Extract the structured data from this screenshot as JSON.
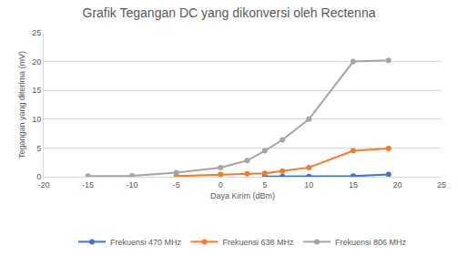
{
  "chart_data": {
    "type": "line",
    "title": "Grafik Tegangan DC yang dikonversi oleh Rectenna",
    "x_label": "Daya Kirim (dBm)",
    "y_label": "Tegangan yang diterima (mV)",
    "series": [
      {
        "name": "Frekuensi 470 MHz",
        "color": "#4472c4",
        "marker": "circle",
        "x": [
          5,
          7,
          10,
          15,
          19
        ],
        "values": [
          0.05,
          0.05,
          0.05,
          0.1,
          0.4
        ]
      },
      {
        "name": "Frekuensi 638 MHz",
        "color": "#ed7d31",
        "marker": "circle",
        "x": [
          -5,
          0,
          3,
          5,
          7,
          10,
          15,
          19
        ],
        "values": [
          0.1,
          0.4,
          0.5,
          0.6,
          1.0,
          1.6,
          4.5,
          4.9
        ]
      },
      {
        "name": "Frekuensi 806 MHz",
        "color": "#a5a5a5",
        "marker": "circle",
        "x": [
          -15,
          -10,
          -5,
          0,
          3,
          5,
          7,
          10,
          15,
          19
        ],
        "values": [
          0.1,
          0.15,
          0.7,
          1.6,
          2.8,
          4.5,
          6.4,
          10,
          20,
          20.2
        ]
      }
    ],
    "xlim": [
      -20,
      25
    ],
    "xticks": [
      -20,
      -15,
      -10,
      -5,
      0,
      5,
      10,
      15,
      20,
      25
    ],
    "ylim": [
      0,
      25
    ],
    "yticks": [
      0,
      5,
      10,
      15,
      20,
      25
    ],
    "grid": true,
    "legend": "bottom"
  }
}
